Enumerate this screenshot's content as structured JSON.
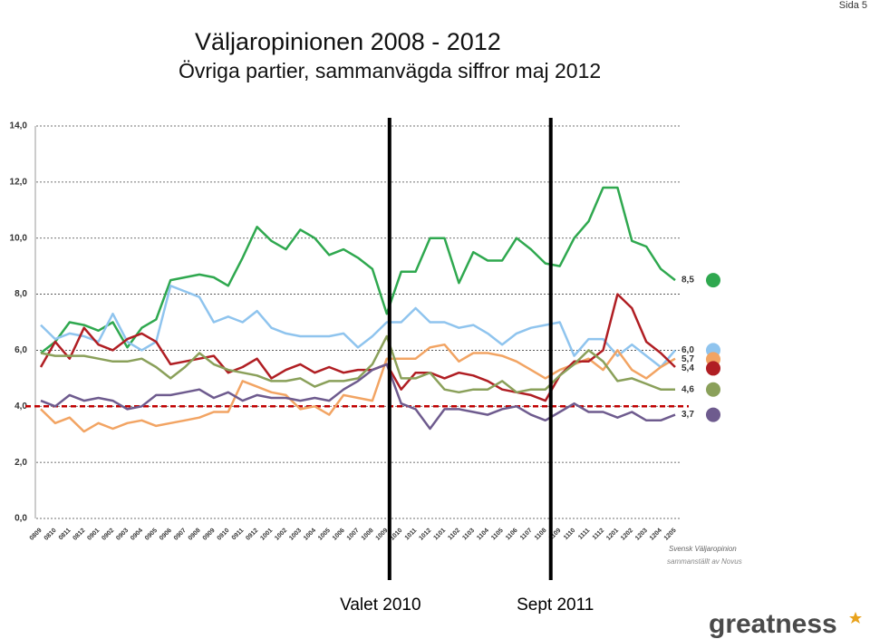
{
  "page": "Sida 5",
  "chart_data": {
    "type": "line",
    "title": "Väljaropinionen 2008 - 2012",
    "subtitle": "Övriga partier, sammanvägda siffror maj 2012",
    "source": [
      "Svensk Väljaropinion",
      "sammanställt av Novus"
    ],
    "categories": [
      "0809",
      "0810",
      "0811",
      "0812",
      "0901",
      "0902",
      "0903",
      "0904",
      "0905",
      "0906",
      "0907",
      "0908",
      "0909",
      "0910",
      "0911",
      "0912",
      "1001",
      "1002",
      "1003",
      "1004",
      "1005",
      "1006",
      "1007",
      "1008",
      "1009",
      "1010",
      "1011",
      "1012",
      "1101",
      "1102",
      "1103",
      "1104",
      "1105",
      "1106",
      "1107",
      "1108",
      "1109",
      "1110",
      "1111",
      "1112",
      "1201",
      "1202",
      "1203",
      "1204",
      "1205"
    ],
    "ylim": [
      0,
      14
    ],
    "yticks": [
      {
        "value": 0,
        "label": "0,0"
      },
      {
        "value": 2,
        "label": "2,0"
      },
      {
        "value": 4,
        "label": "4,0"
      },
      {
        "value": 6,
        "label": "6,0"
      },
      {
        "value": 8,
        "label": "8,0"
      },
      {
        "value": 10,
        "label": "10,0"
      },
      {
        "value": 12,
        "label": "12,0"
      },
      {
        "value": 14,
        "label": "14,0"
      }
    ],
    "grid": true,
    "threshold": {
      "value": 4,
      "color": "#c00000"
    },
    "markers": [
      {
        "at": "1009",
        "label": "Valet 2010"
      },
      {
        "at": "1109",
        "label": "Sept 2011"
      }
    ],
    "series": [
      {
        "color": "#2fa84f",
        "end_label": "8,5",
        "values": [
          5.9,
          6.3,
          7.0,
          6.9,
          6.7,
          7.0,
          6.1,
          6.8,
          7.1,
          8.5,
          8.6,
          8.7,
          8.6,
          8.3,
          9.3,
          10.4,
          9.9,
          9.6,
          10.3,
          10.0,
          9.4,
          9.6,
          9.3,
          8.9,
          7.3,
          8.8,
          8.8,
          10.0,
          10.0,
          8.4,
          9.5,
          9.2,
          9.2,
          10.0,
          9.6,
          9.1,
          9.0,
          10.0,
          10.6,
          11.8,
          11.8,
          9.9,
          9.7,
          8.9,
          8.5
        ]
      },
      {
        "color": "#8fc4ee",
        "end_label": "6,0",
        "values": [
          6.9,
          6.4,
          6.6,
          6.5,
          6.3,
          7.3,
          6.3,
          6.0,
          6.3,
          8.3,
          8.1,
          7.9,
          7.0,
          7.2,
          7.0,
          7.4,
          6.8,
          6.6,
          6.5,
          6.5,
          6.5,
          6.6,
          6.1,
          6.5,
          7.0,
          7.0,
          7.5,
          7.0,
          7.0,
          6.8,
          6.9,
          6.6,
          6.2,
          6.6,
          6.8,
          6.9,
          7.0,
          5.8,
          6.4,
          6.4,
          5.8,
          6.2,
          5.8,
          5.4,
          6.0
        ]
      },
      {
        "color": "#f2a463",
        "end_label": "5,7",
        "values": [
          3.9,
          3.4,
          3.6,
          3.1,
          3.4,
          3.2,
          3.4,
          3.5,
          3.3,
          3.4,
          3.5,
          3.6,
          3.8,
          3.8,
          4.9,
          4.7,
          4.5,
          4.4,
          3.9,
          4.0,
          3.7,
          4.4,
          4.3,
          4.2,
          5.7,
          5.7,
          5.7,
          6.1,
          6.2,
          5.6,
          5.9,
          5.9,
          5.8,
          5.6,
          5.3,
          5.0,
          5.3,
          5.5,
          5.7,
          5.3,
          6.0,
          5.3,
          5.0,
          5.4,
          5.7
        ]
      },
      {
        "color": "#b01e23",
        "end_label": "5,4",
        "values": [
          5.4,
          6.3,
          5.7,
          6.8,
          6.2,
          6.0,
          6.4,
          6.6,
          6.3,
          5.5,
          5.6,
          5.7,
          5.8,
          5.2,
          5.4,
          5.7,
          5.0,
          5.3,
          5.5,
          5.2,
          5.4,
          5.2,
          5.3,
          5.3,
          5.5,
          4.6,
          5.2,
          5.2,
          5.0,
          5.2,
          5.1,
          4.9,
          4.6,
          4.5,
          4.4,
          4.2,
          5.1,
          5.6,
          5.6,
          6.0,
          8.0,
          7.5,
          6.3,
          5.9,
          5.4
        ]
      },
      {
        "color": "#8aa05a",
        "end_label": "4,6",
        "values": [
          5.9,
          5.8,
          5.8,
          5.8,
          5.7,
          5.6,
          5.6,
          5.7,
          5.4,
          5.0,
          5.4,
          5.9,
          5.5,
          5.3,
          5.2,
          5.1,
          4.9,
          4.9,
          5.0,
          4.7,
          4.9,
          4.9,
          5.0,
          5.5,
          6.5,
          5.0,
          5.0,
          5.2,
          4.6,
          4.5,
          4.6,
          4.6,
          4.9,
          4.5,
          4.6,
          4.6,
          5.1,
          5.5,
          6.0,
          5.6,
          4.9,
          5.0,
          4.8,
          4.6,
          4.6
        ]
      },
      {
        "color": "#6e5b8e",
        "end_label": "3,7",
        "values": [
          4.2,
          4.0,
          4.4,
          4.2,
          4.3,
          4.2,
          3.9,
          4.0,
          4.4,
          4.4,
          4.5,
          4.6,
          4.3,
          4.5,
          4.2,
          4.4,
          4.3,
          4.3,
          4.2,
          4.3,
          4.2,
          4.6,
          4.9,
          5.3,
          5.5,
          4.1,
          3.9,
          3.2,
          3.9,
          3.9,
          3.8,
          3.7,
          3.9,
          4.0,
          3.7,
          3.5,
          3.8,
          4.1,
          3.8,
          3.8,
          3.6,
          3.8,
          3.5,
          3.5,
          3.7
        ]
      }
    ]
  },
  "logo": "greatness"
}
